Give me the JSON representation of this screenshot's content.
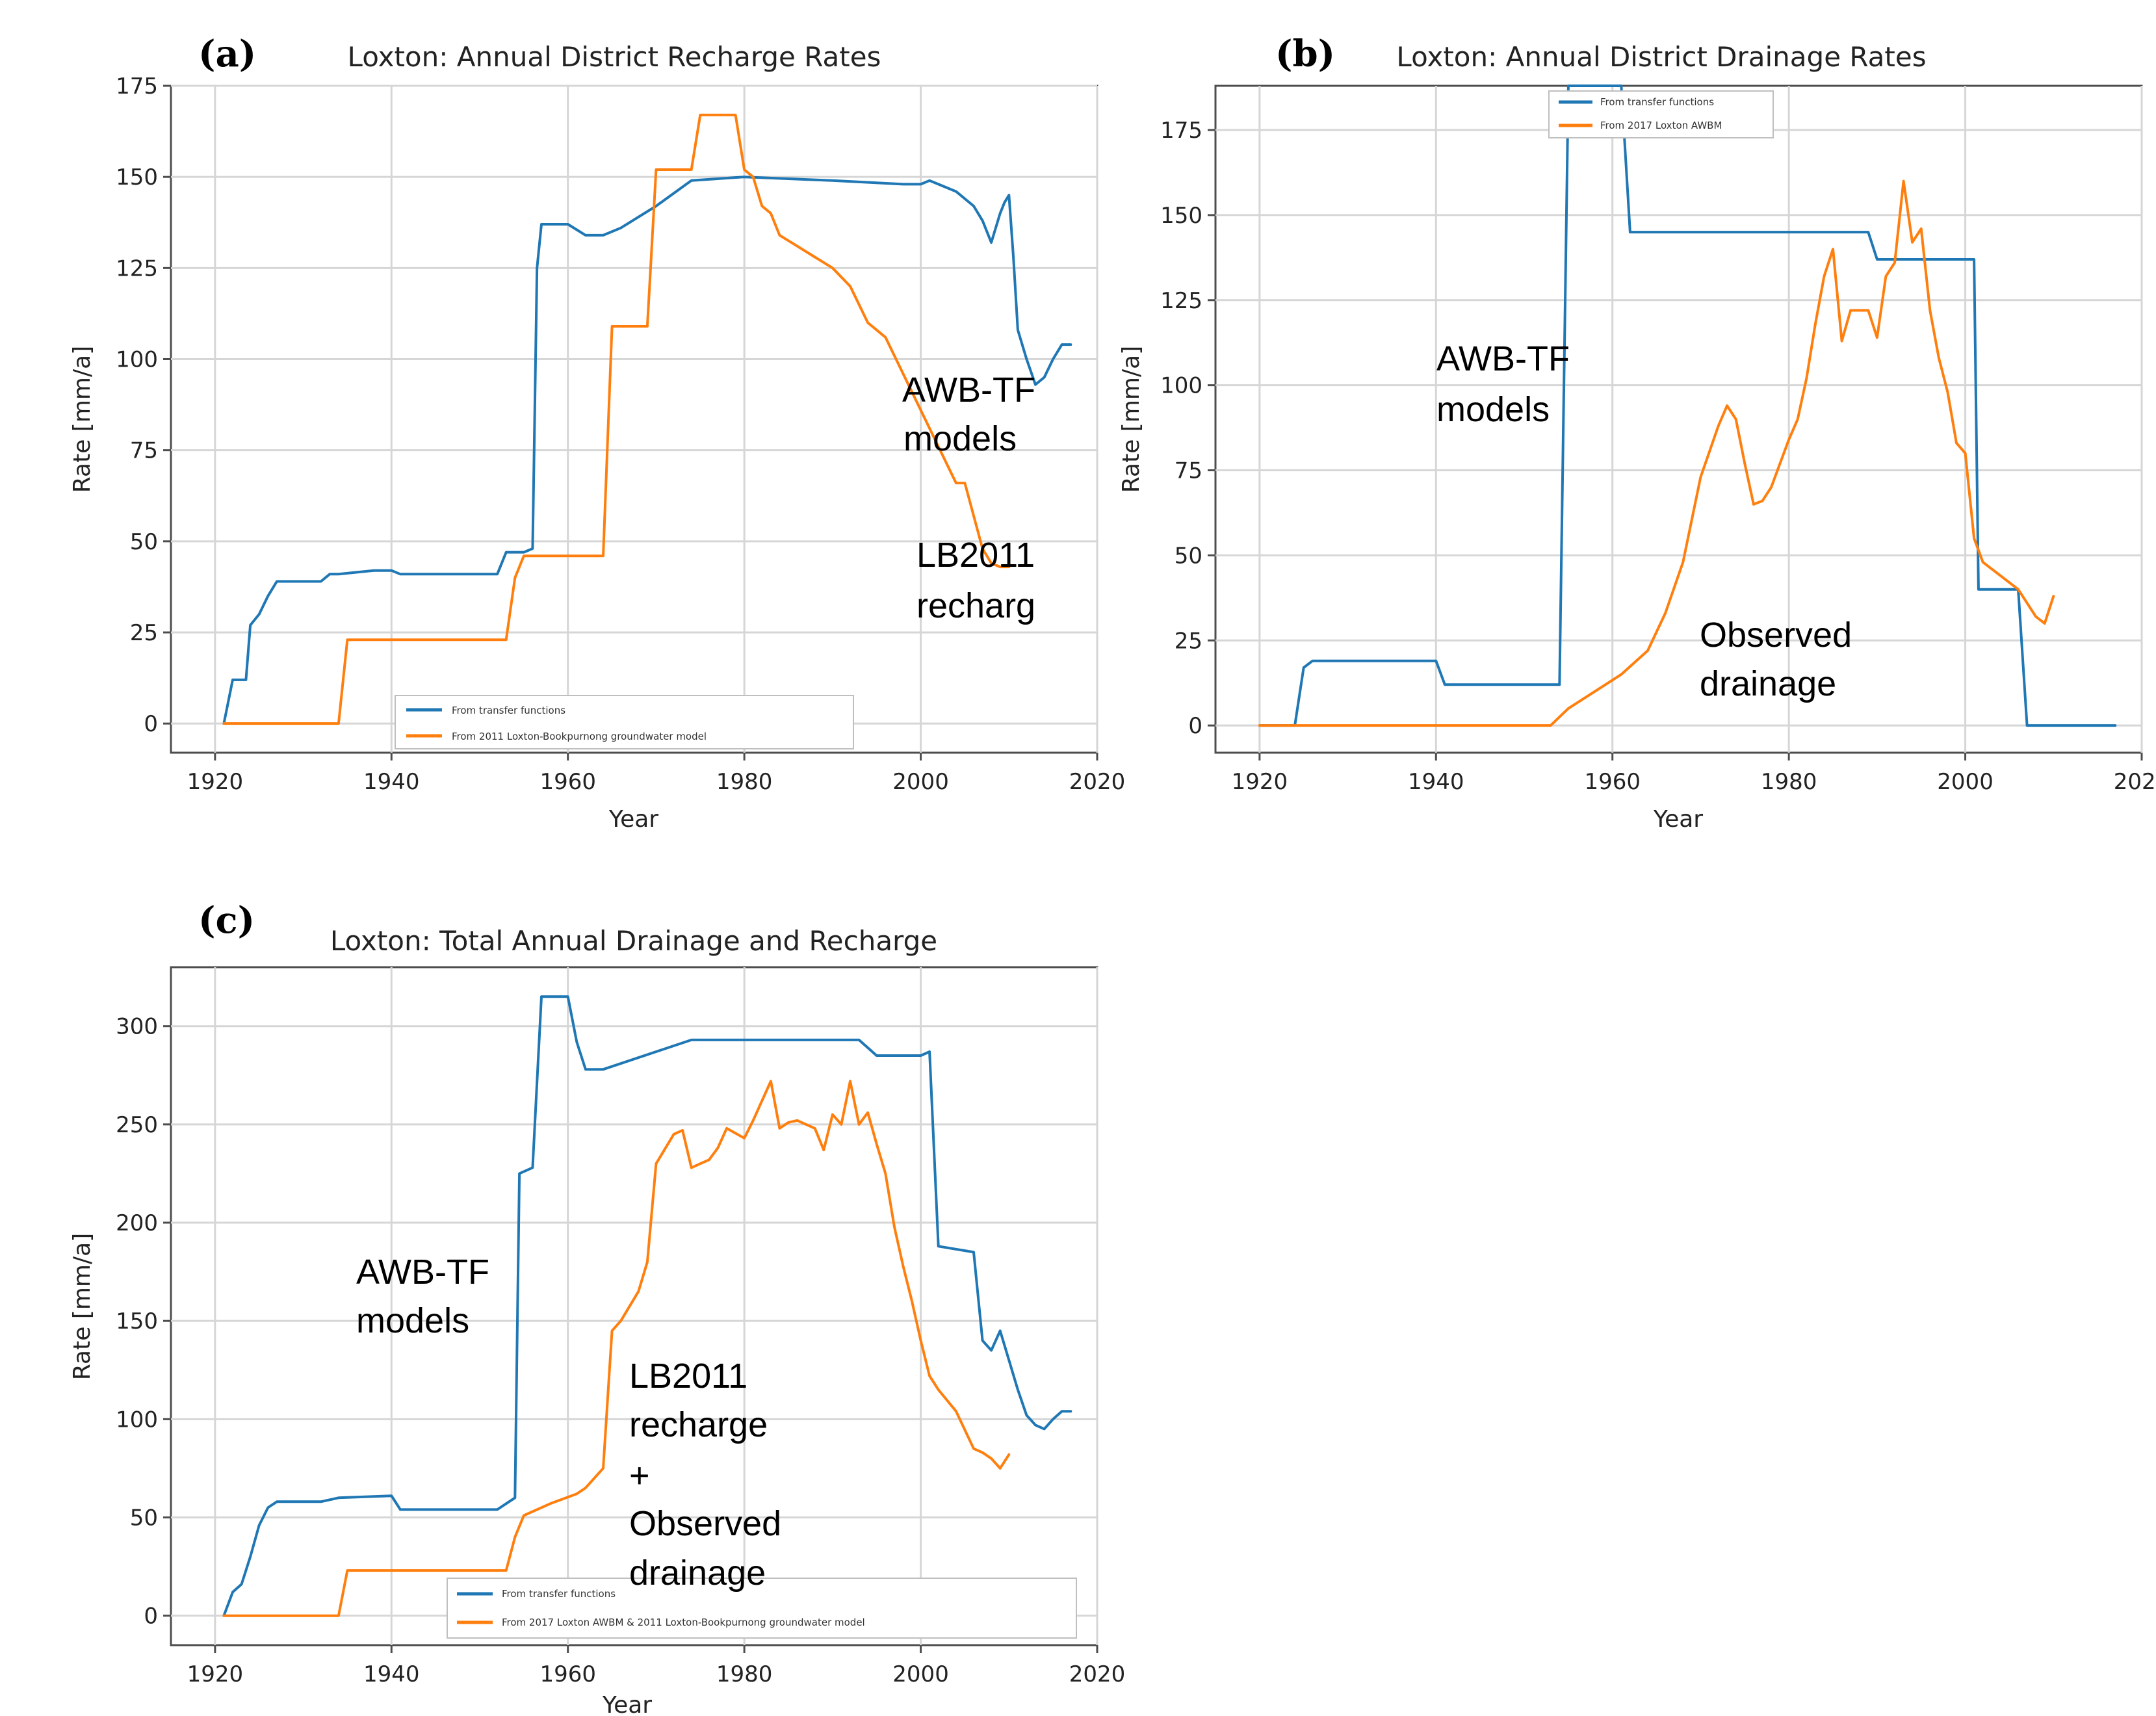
{
  "colors": {
    "series_blue": "#1f77b4",
    "series_orange": "#ff7f0e",
    "grid": "#d6d6d6",
    "axes": "#4d4d4d"
  },
  "chart_data": [
    {
      "panel_label": "(a)",
      "type": "line",
      "title": "Loxton: Annual District Recharge Rates",
      "xlabel": "Year",
      "ylabel": "Rate [mm/a]",
      "xlim": [
        1915,
        2020
      ],
      "ylim": [
        -8,
        175
      ],
      "xticks": [
        1920,
        1940,
        1960,
        1980,
        2000,
        2020
      ],
      "yticks": [
        0,
        25,
        50,
        75,
        100,
        125,
        150,
        175
      ],
      "grid": true,
      "legend": "bottom-center",
      "series": [
        {
          "name": "From transfer functions",
          "color": "#1f77b4",
          "x": [
            1921,
            1922,
            1922.5,
            1923.5,
            1924,
            1925,
            1926,
            1927,
            1928,
            1932,
            1933,
            1934,
            1938,
            1940,
            1941,
            1947,
            1952,
            1953,
            1955,
            1956,
            1956.5,
            1957,
            1960,
            1962,
            1964,
            1966,
            1970,
            1974,
            1980,
            1990,
            1998,
            2000,
            2001,
            2002,
            2004,
            2006,
            2007,
            2008,
            2009,
            2009.5,
            2010,
            2010.5,
            2011,
            2012,
            2013,
            2014,
            2015,
            2016,
            2017
          ],
          "y": [
            0,
            12,
            12,
            12,
            27,
            30,
            35,
            39,
            39,
            39,
            41,
            41,
            42,
            42,
            41,
            41,
            41,
            47,
            47,
            48,
            125,
            137,
            137,
            134,
            134,
            136,
            142,
            149,
            150,
            149,
            148,
            148,
            149,
            148,
            146,
            142,
            138,
            132,
            140,
            143,
            145,
            128,
            108,
            100,
            93,
            95,
            100,
            104,
            104
          ]
        },
        {
          "name": "From 2011 Loxton-Bookpurnong groundwater model",
          "color": "#ff7f0e",
          "x": [
            1921,
            1934,
            1935,
            1953,
            1954,
            1955,
            1964,
            1965,
            1969,
            1970,
            1974,
            1975,
            1979,
            1980,
            1981,
            1982,
            1983,
            1984,
            1986,
            1988,
            1990,
            1992,
            1994,
            1996,
            1998,
            2000,
            2002,
            2004,
            2005,
            2006,
            2007,
            2008,
            2009,
            2010
          ],
          "y": [
            0,
            0,
            23,
            23,
            40,
            46,
            46,
            109,
            109,
            152,
            152,
            167,
            167,
            152,
            150,
            142,
            140,
            134,
            131,
            128,
            125,
            120,
            110,
            106,
            96,
            86,
            76,
            66,
            66,
            57,
            48,
            44,
            43,
            43
          ]
        }
      ],
      "annotations": [
        "AWB-TF",
        "models",
        "LB2011",
        "recharg"
      ]
    },
    {
      "panel_label": "(b)",
      "type": "line",
      "title": "Loxton: Annual District Drainage Rates",
      "xlabel": "Year",
      "ylabel": "Rate [mm/a]",
      "xlim": [
        1915,
        2020
      ],
      "ylim": [
        -8,
        188
      ],
      "xticks": [
        1920,
        1940,
        1960,
        1980,
        2000,
        2020
      ],
      "yticks": [
        0,
        25,
        50,
        75,
        100,
        125,
        150,
        175
      ],
      "grid": true,
      "legend": "top-center",
      "series": [
        {
          "name": "From transfer functions",
          "color": "#1f77b4",
          "x": [
            1920,
            1924,
            1925,
            1926,
            1940,
            1941,
            1954,
            1955,
            1961,
            1962,
            1989,
            1990,
            2001,
            2001.5,
            2005,
            2006,
            2007,
            2017
          ],
          "y": [
            0,
            0,
            17,
            19,
            19,
            12,
            12,
            188,
            188,
            145,
            145,
            137,
            137,
            40,
            40,
            40,
            0,
            0
          ]
        },
        {
          "name": "From 2017 Loxton AWBM",
          "color": "#ff7f0e",
          "x": [
            1920,
            1953,
            1955,
            1958,
            1961,
            1964,
            1966,
            1968,
            1970,
            1972,
            1973,
            1974,
            1975,
            1976,
            1977,
            1978,
            1980,
            1981,
            1982,
            1983,
            1984,
            1985,
            1986,
            1987,
            1989,
            1990,
            1991,
            1992,
            1993,
            1994,
            1995,
            1996,
            1997,
            1998,
            1999,
            2000,
            2001,
            2002,
            2004,
            2006,
            2007,
            2008,
            2009,
            2010
          ],
          "y": [
            0,
            0,
            5,
            10,
            15,
            22,
            33,
            48,
            73,
            88,
            94,
            90,
            77,
            65,
            66,
            70,
            84,
            90,
            102,
            118,
            132,
            140,
            113,
            122,
            122,
            114,
            132,
            136,
            160,
            142,
            146,
            122,
            108,
            98,
            83,
            80,
            55,
            48,
            44,
            40,
            36,
            32,
            30,
            38
          ]
        }
      ],
      "annotations": [
        "AWB-TF",
        "models",
        "Observed",
        "drainage"
      ]
    },
    {
      "panel_label": "(c)",
      "type": "line",
      "title": "Loxton: Total Annual Drainage and Recharge",
      "xlabel": "Year",
      "ylabel": "Rate [mm/a]",
      "xlim": [
        1915,
        2020
      ],
      "ylim": [
        -15,
        330
      ],
      "xticks": [
        1920,
        1940,
        1960,
        1980,
        2000,
        2020
      ],
      "yticks": [
        0,
        50,
        100,
        150,
        200,
        250,
        300
      ],
      "grid": true,
      "legend": "bottom-right",
      "series": [
        {
          "name": "From transfer functions",
          "color": "#1f77b4",
          "x": [
            1921,
            1922,
            1923,
            1924,
            1925,
            1926,
            1927,
            1932,
            1934,
            1940,
            1941,
            1947,
            1952,
            1953,
            1954,
            1954.5,
            1956,
            1957,
            1960,
            1961,
            1962,
            1964,
            1970,
            1974,
            1980,
            1990,
            1993,
            1995,
            2000,
            2001,
            2002,
            2006,
            2007,
            2008,
            2009,
            2010,
            2011,
            2012,
            2013,
            2014,
            2015,
            2016,
            2017
          ],
          "y": [
            0,
            12,
            16,
            30,
            46,
            55,
            58,
            58,
            60,
            61,
            54,
            54,
            54,
            57,
            60,
            225,
            228,
            315,
            315,
            292,
            278,
            278,
            287,
            293,
            293,
            293,
            293,
            285,
            285,
            287,
            188,
            185,
            140,
            135,
            145,
            130,
            115,
            102,
            97,
            95,
            100,
            104,
            104
          ]
        },
        {
          "name": "From 2017 Loxton AWBM & 2011 Loxton-Bookpurnong groundwater model",
          "color": "#ff7f0e",
          "x": [
            1921,
            1934,
            1935,
            1953,
            1954,
            1955,
            1958,
            1961,
            1962,
            1964,
            1965,
            1966,
            1968,
            1969,
            1970,
            1972,
            1973,
            1974,
            1975,
            1976,
            1977,
            1978,
            1980,
            1981,
            1982,
            1983,
            1984,
            1985,
            1986,
            1987,
            1988,
            1989,
            1990,
            1991,
            1992,
            1993,
            1994,
            1995,
            1996,
            1997,
            1998,
            1999,
            2000,
            2001,
            2002,
            2004,
            2006,
            2007,
            2008,
            2009,
            2010
          ],
          "y": [
            0,
            0,
            23,
            23,
            40,
            51,
            57,
            62,
            65,
            75,
            145,
            150,
            165,
            180,
            230,
            245,
            247,
            228,
            230,
            232,
            238,
            248,
            243,
            252,
            262,
            272,
            248,
            251,
            252,
            250,
            248,
            237,
            255,
            250,
            272,
            250,
            256,
            240,
            225,
            198,
            178,
            160,
            140,
            122,
            115,
            104,
            85,
            83,
            80,
            75,
            82
          ]
        }
      ],
      "annotations": [
        "AWB-TF",
        "models",
        "LB2011",
        "recharge",
        "+",
        "Observed",
        "drainage"
      ]
    }
  ]
}
